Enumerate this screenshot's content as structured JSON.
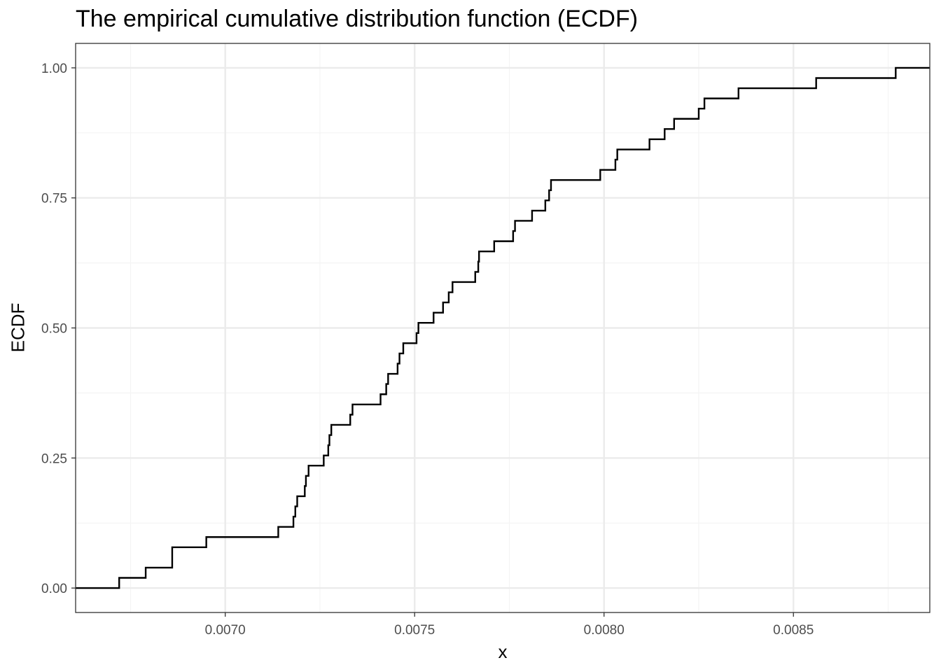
{
  "chart_data": {
    "type": "line",
    "subtype": "step",
    "title": "The empirical cumulative distribution function (ECDF)",
    "xlabel": "x",
    "ylabel": "ECDF",
    "xlim": [
      0.006605,
      0.00886
    ],
    "ylim": [
      -0.047,
      1.047
    ],
    "xticks": [
      0.007,
      0.0075,
      0.008,
      0.0085
    ],
    "xtick_labels": [
      "0.0070",
      "0.0075",
      "0.0080",
      "0.0085"
    ],
    "yticks": [
      0,
      0.25,
      0.5,
      0.75,
      1
    ],
    "ytick_labels": [
      "0.00",
      "0.25",
      "0.50",
      "0.75",
      "1.00"
    ],
    "grid": true,
    "x": [
      0.00672,
      0.00679,
      0.00686,
      0.00695,
      0.00714,
      0.00718,
      0.007185,
      0.00719,
      0.00721,
      0.007213,
      0.00722,
      0.00726,
      0.007272,
      0.007275,
      0.00728,
      0.00733,
      0.007336,
      0.00741,
      0.007425,
      0.00743,
      0.007455,
      0.00746,
      0.00747,
      0.007505,
      0.00751,
      0.00755,
      0.007575,
      0.00759,
      0.0076,
      0.00766,
      0.007668,
      0.00767,
      0.00771,
      0.00776,
      0.007765,
      0.00781,
      0.007845,
      0.007855,
      0.00786,
      0.00799,
      0.00803,
      0.008035,
      0.00812,
      0.00816,
      0.008185,
      0.00825,
      0.008265,
      0.00827,
      0.008355,
      0.00856,
      0.00877
    ],
    "y": [
      0.0196,
      0.0392,
      0.0784,
      0.098,
      0.1176,
      0.1373,
      0.1569,
      0.1765,
      0.1961,
      0.2157,
      0.2353,
      0.2549,
      0.2745,
      0.2941,
      0.3137,
      0.3333,
      0.3529,
      0.3725,
      0.3922,
      0.4118,
      0.4314,
      0.451,
      0.4706,
      0.4902,
      0.5098,
      0.5294,
      0.549,
      0.5686,
      0.5882,
      0.6078,
      0.6275,
      0.6471,
      0.6667,
      0.6863,
      0.7059,
      0.7255,
      0.7451,
      0.7647,
      0.7843,
      0.8039,
      0.8235,
      0.8431,
      0.8627,
      0.8824,
      0.902,
      0.9216,
      0.9412,
      0.9412,
      0.9608,
      0.9804,
      1.0
    ],
    "colors": {
      "line": "#000000",
      "grid_major": "#ebebeb",
      "grid_minor": "#f4f4f4",
      "panel_border": "#333333",
      "tick_text": "#4d4d4d"
    }
  }
}
